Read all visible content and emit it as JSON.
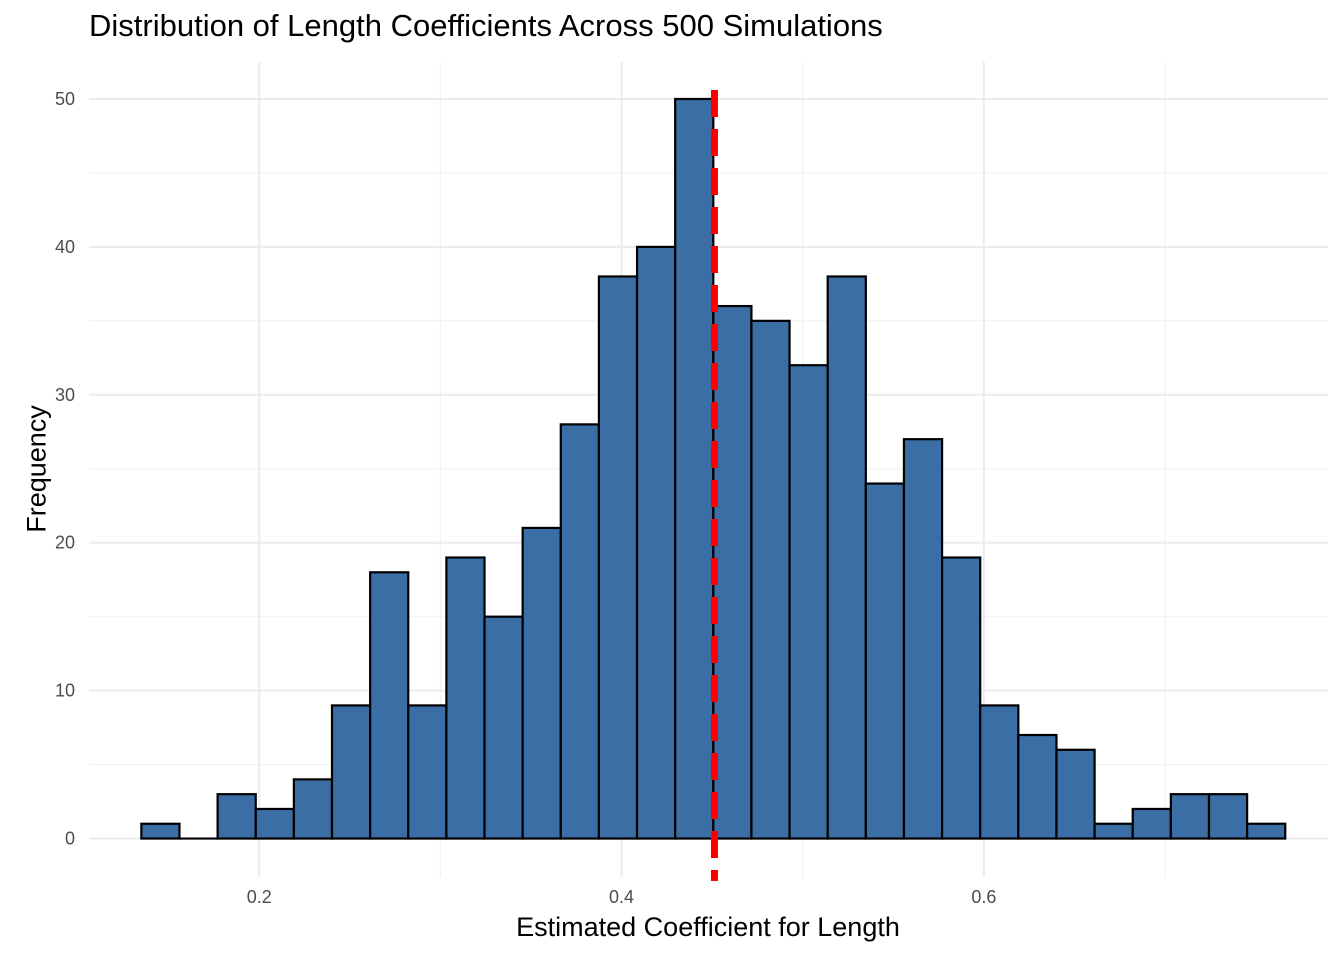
{
  "chart_data": {
    "type": "bar",
    "subtype": "histogram",
    "title": "Distribution of Length Coefficients Across 500 Simulations",
    "xlabel": "Estimated Coefficient for Length",
    "ylabel": "Frequency",
    "xlim": [
      0.106,
      0.79
    ],
    "ylim": [
      -2.6,
      52.5
    ],
    "x_ticks": [
      "0.2",
      "0.4",
      "0.6"
    ],
    "x_tick_values": [
      0.2,
      0.4,
      0.6
    ],
    "y_ticks": [
      "0",
      "10",
      "20",
      "30",
      "40",
      "50"
    ],
    "y_tick_values": [
      0,
      10,
      20,
      30,
      40,
      50
    ],
    "grid": true,
    "bins": {
      "start": 0.1349,
      "width": 0.02105,
      "counts": [
        1,
        0,
        3,
        2,
        4,
        9,
        18,
        9,
        19,
        15,
        21,
        28,
        38,
        40,
        50,
        36,
        35,
        32,
        38,
        24,
        27,
        19,
        9,
        7,
        6,
        1,
        2,
        3,
        3,
        1
      ]
    },
    "reference_line": {
      "x": 0.4513,
      "style": "dashed"
    },
    "colors": {
      "bar_fill": "#3A6EA5",
      "bar_stroke": "#000000",
      "reference_line": "#FF0000",
      "grid_major": "#EBEBEB",
      "grid_minor": "#F2F2F2"
    }
  }
}
